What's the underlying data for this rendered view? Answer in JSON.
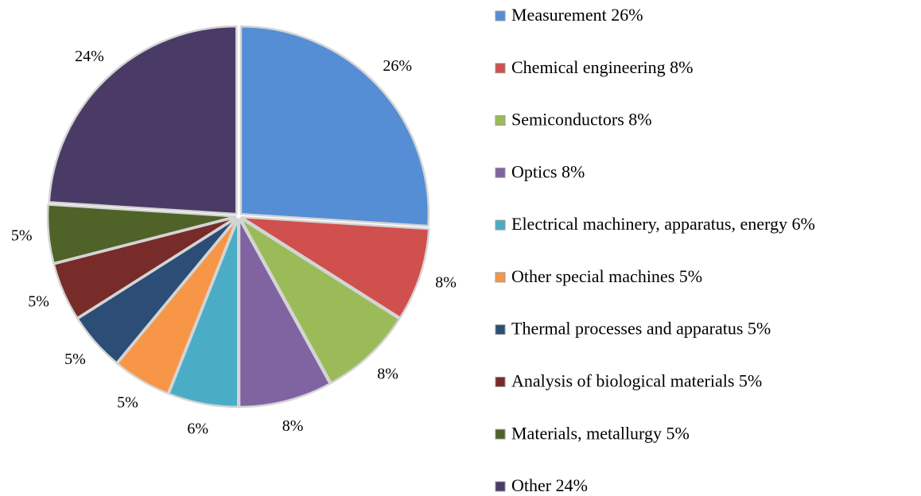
{
  "chart_data": {
    "type": "pie",
    "categories": [
      "Measurement 26%",
      "Chemical engineering 8%",
      "Semiconductors 8%",
      "Optics 8%",
      "Electrical machinery, apparatus, energy 6%",
      "Other special machines 5%",
      "Thermal processes and apparatus 5%",
      "Analysis of biological materials 5%",
      "Materials, metallurgy 5%",
      "Other 24%"
    ],
    "values": [
      26,
      8,
      8,
      8,
      6,
      5,
      5,
      5,
      5,
      24
    ],
    "value_labels": [
      "26%",
      "8%",
      "8%",
      "8%",
      "6%",
      "5%",
      "5%",
      "5%",
      "5%",
      "24%"
    ],
    "colors": [
      "#558ed5",
      "#d0504d",
      "#9bbb59",
      "#8064a2",
      "#4bacc6",
      "#f79646",
      "#2c4d75",
      "#772c2a",
      "#4f6228",
      "#4a3b66"
    ],
    "legend": "right"
  }
}
